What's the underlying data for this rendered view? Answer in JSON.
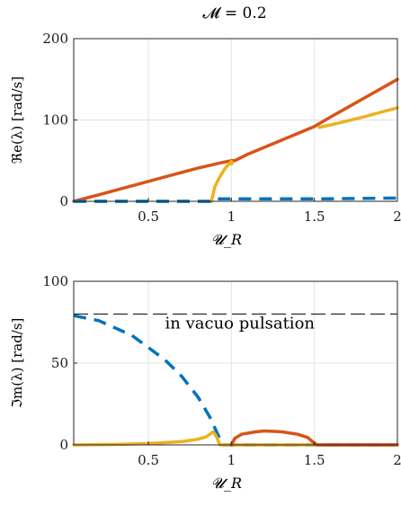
{
  "figure": {
    "title": "𝓜 = 0.2"
  },
  "chart_data": [
    {
      "type": "line",
      "title": "𝓜 = 0.2",
      "xlabel": "𝓤_R",
      "ylabel": "ℜe(λ) [rad/s]",
      "xlim": [
        0.05,
        2.0
      ],
      "ylim": [
        0,
        200
      ],
      "xticks": [
        0.5,
        1,
        1.5,
        2
      ],
      "xtick_labels": [
        "0.5",
        "1",
        "1.5",
        "2"
      ],
      "yticks": [
        0,
        100,
        200
      ],
      "ytick_labels": [
        "0",
        "100",
        "200"
      ],
      "grid": true,
      "series": [
        {
          "color": "#D95319",
          "style": "solid",
          "points": [
            [
              0.05,
              0
            ],
            [
              0.2,
              8
            ],
            [
              0.4,
              19
            ],
            [
              0.6,
              30
            ],
            [
              0.8,
              41
            ],
            [
              0.95,
              48
            ],
            [
              1.0,
              50
            ],
            [
              1.02,
              50
            ],
            [
              1.1,
              58
            ],
            [
              1.3,
              75
            ],
            [
              1.5,
              92
            ],
            [
              1.6,
              104
            ],
            [
              1.8,
              127
            ],
            [
              2.0,
              150
            ]
          ]
        },
        {
          "color": "#EDB120",
          "style": "solid",
          "points": [
            [
              0.88,
              0
            ],
            [
              0.9,
              18
            ],
            [
              0.93,
              30
            ],
            [
              0.96,
              40
            ],
            [
              0.99,
              47
            ],
            [
              1.0,
              49
            ],
            [
              1.0,
              46
            ],
            [
              1.005,
              47
            ]
          ]
        },
        {
          "color": "#EDB120",
          "style": "solid",
          "points": [
            [
              1.53,
              91
            ],
            [
              1.6,
              94
            ],
            [
              1.8,
              104
            ],
            [
              2.0,
              115
            ]
          ]
        },
        {
          "color": "#EDB120",
          "style": "dashed",
          "points": [
            [
              0.05,
              0
            ],
            [
              0.88,
              0
            ]
          ]
        },
        {
          "color": "#0072BD",
          "style": "dashed",
          "points": [
            [
              0.05,
              0
            ],
            [
              0.87,
              0
            ],
            [
              0.9,
              3
            ],
            [
              1.0,
              3
            ],
            [
              1.5,
              3
            ],
            [
              2.0,
              4
            ]
          ]
        }
      ]
    },
    {
      "type": "line",
      "xlabel": "𝓤_R",
      "ylabel": "ℑm(λ) [rad/s]",
      "xlim": [
        0.05,
        2.0
      ],
      "ylim": [
        0,
        100
      ],
      "xticks": [
        0.5,
        1,
        1.5,
        2
      ],
      "xtick_labels": [
        "0.5",
        "1",
        "1.5",
        "2"
      ],
      "yticks": [
        0,
        50,
        100
      ],
      "ytick_labels": [
        "0",
        "50",
        "100"
      ],
      "grid": true,
      "annotation": "in vacuo pulsation",
      "reference_line": {
        "y": 80,
        "color": "#000000",
        "style": "dashed"
      },
      "series": [
        {
          "color": "#0072BD",
          "style": "dashed",
          "points": [
            [
              0.05,
              79
            ],
            [
              0.2,
              76
            ],
            [
              0.4,
              67
            ],
            [
              0.6,
              52
            ],
            [
              0.7,
              42
            ],
            [
              0.8,
              29
            ],
            [
              0.87,
              17
            ],
            [
              0.92,
              6
            ],
            [
              0.95,
              0
            ],
            [
              1.0,
              0
            ],
            [
              2.0,
              0
            ]
          ]
        },
        {
          "color": "#EDB120",
          "style": "solid",
          "points": [
            [
              0.05,
              0
            ],
            [
              0.3,
              0.3
            ],
            [
              0.5,
              0.8
            ],
            [
              0.7,
              2
            ],
            [
              0.8,
              3.5
            ],
            [
              0.85,
              5
            ],
            [
              0.89,
              8
            ],
            [
              0.91,
              5
            ],
            [
              0.93,
              0
            ],
            [
              1.0,
              0
            ],
            [
              1.5,
              0
            ],
            [
              2.0,
              0
            ]
          ]
        },
        {
          "color": "#D95319",
          "style": "solid",
          "points": [
            [
              1.0,
              0
            ],
            [
              1.02,
              4
            ],
            [
              1.06,
              6.5
            ],
            [
              1.15,
              8
            ],
            [
              1.2,
              8.5
            ],
            [
              1.3,
              8
            ],
            [
              1.4,
              6.5
            ],
            [
              1.46,
              4.5
            ],
            [
              1.5,
              1
            ],
            [
              1.52,
              0
            ],
            [
              2.0,
              0
            ]
          ]
        }
      ]
    }
  ]
}
